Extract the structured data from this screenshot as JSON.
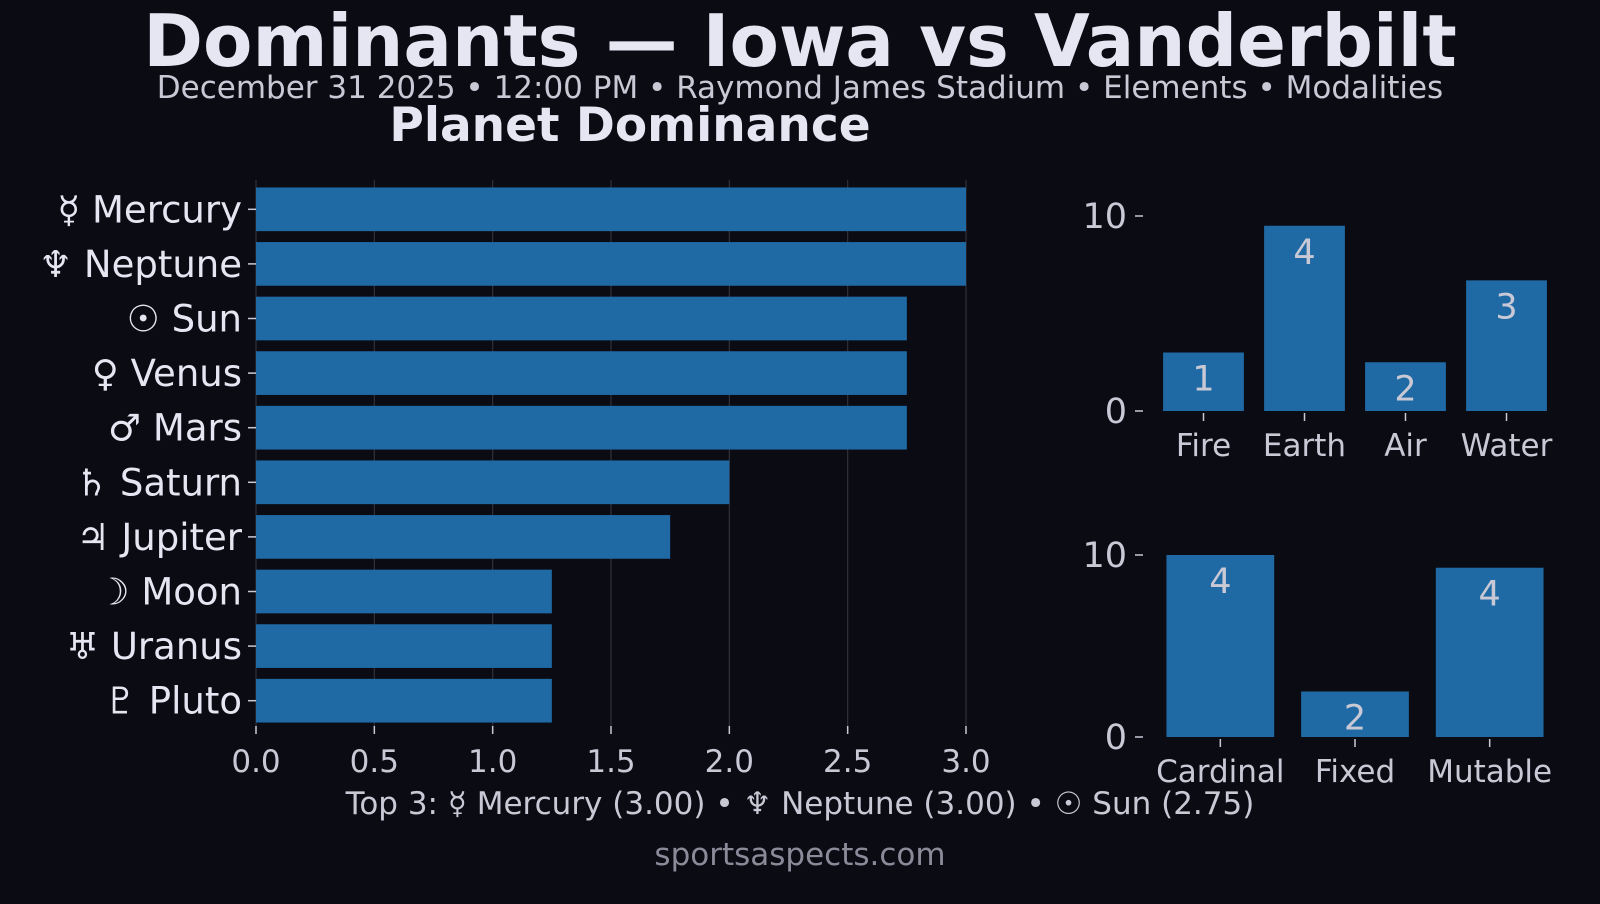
{
  "header": {
    "title": "Dominants — Iowa vs Vanderbilt",
    "subtitle": "December 31 2025 • 12:00 PM • Raymond James Stadium • Elements • Modalities"
  },
  "footer": {
    "top3": "Top 3: ☿ Mercury (3.00) • ♆ Neptune (3.00) • ☉ Sun (2.75)",
    "watermark": "sportsaspects.com"
  },
  "colors": {
    "background": "#0b0b14",
    "bar": "#1f6aa5",
    "text": "#e6e6f2",
    "tick_text": "#c9c9d6",
    "muted": "#8a8a99",
    "grid": "#3a3a48"
  },
  "chart_data": [
    {
      "type": "bar",
      "orientation": "horizontal",
      "title": "Planet Dominance",
      "categories": [
        "☿ Mercury",
        "♆ Neptune",
        "☉ Sun",
        "♀ Venus",
        "♂ Mars",
        "♄ Saturn",
        "♃ Jupiter",
        "☽ Moon",
        "♅ Uranus",
        "♇ Pluto"
      ],
      "values": [
        3.0,
        3.0,
        2.75,
        2.75,
        2.75,
        2.0,
        1.75,
        1.25,
        1.25,
        1.25
      ],
      "xlim": [
        0,
        3.0
      ],
      "xticks": [
        "0.0",
        "0.5",
        "1.0",
        "1.5",
        "2.0",
        "2.5",
        "3.0"
      ],
      "grid": "vertical"
    },
    {
      "type": "bar",
      "categories": [
        "Fire",
        "Earth",
        "Air",
        "Water"
      ],
      "values": [
        3.0,
        9.5,
        2.5,
        6.7
      ],
      "data_labels": [
        "1",
        "4",
        "2",
        "3"
      ],
      "ylim": [
        0,
        10
      ],
      "yticks": [
        "0",
        "10"
      ],
      "grid": "off"
    },
    {
      "type": "bar",
      "categories": [
        "Cardinal",
        "Fixed",
        "Mutable"
      ],
      "values": [
        10.0,
        2.5,
        9.3
      ],
      "data_labels": [
        "4",
        "2",
        "4"
      ],
      "ylim": [
        0,
        10
      ],
      "yticks": [
        "0",
        "10"
      ],
      "grid": "off"
    }
  ]
}
